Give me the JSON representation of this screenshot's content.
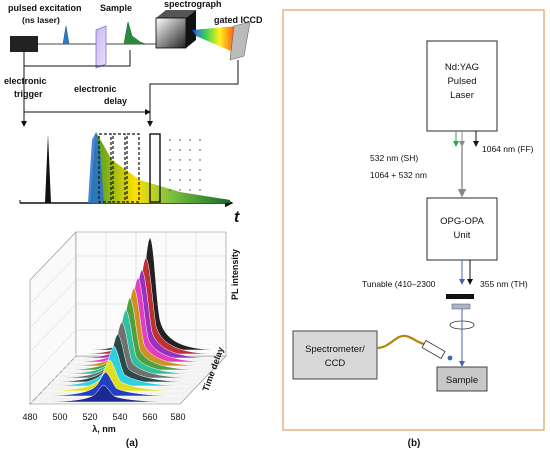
{
  "panel_a": {
    "caption": "(a)",
    "labels": {
      "pulsed_excitation": "pulsed excitation",
      "ns_laser": "(ns laser)",
      "sample": "Sample",
      "spectrograph": "spectrograph",
      "gated_iccd": "gated ICCD",
      "electronic_trigger_1": "electronic",
      "electronic_trigger_2": "trigger",
      "electronic_delay_1": "electronic",
      "electronic_delay_2": "delay",
      "time_axis": "t"
    },
    "plot3d": {
      "z_label": "PL intensity",
      "y_label": "Time delay",
      "x_label": "λ, nm",
      "x_ticks": [
        "480",
        "500",
        "520",
        "540",
        "560",
        "580"
      ]
    }
  },
  "panel_b": {
    "caption": "(b)",
    "laser_box": [
      "Nd:YAG",
      "Pulsed",
      "Laser"
    ],
    "opg_box": [
      "OPG-OPA",
      "Unit"
    ],
    "spectrometer_box": [
      "Spectrometer/",
      "CCD"
    ],
    "sample_box": "Sample",
    "beam_labels": {
      "sh": "532 nm (SH)",
      "ff": "1064 nm (FF)",
      "mix": "1064 + 532 nm",
      "tunable": "Tunable (410–2300",
      "th": "355 nm (TH)"
    },
    "colors": {
      "frame": "#e0a060",
      "green_beam": "#22aa44",
      "grey_beam": "#888888",
      "blue_beam": "#4466aa",
      "fiber": "#b8860b"
    }
  }
}
